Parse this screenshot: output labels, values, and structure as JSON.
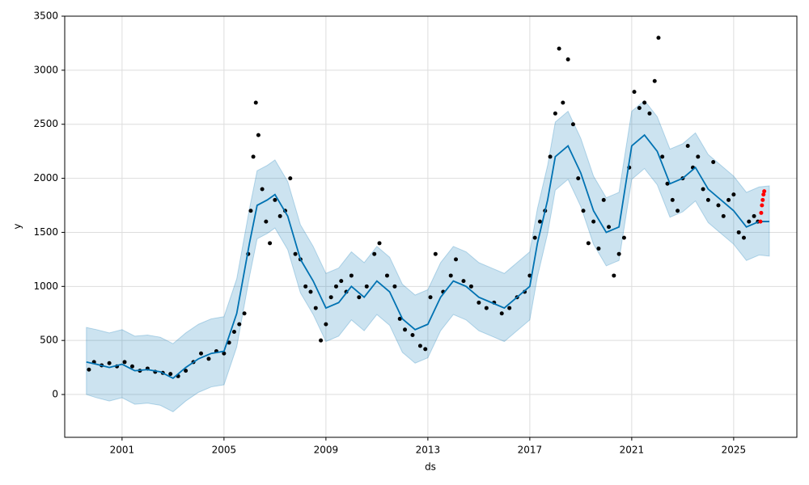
{
  "chart_data": {
    "type": "line",
    "xlabel": "ds",
    "ylabel": "y",
    "xlim": [
      1998.75,
      2027.48
    ],
    "ylim": [
      -396,
      3500
    ],
    "xticks": [
      2001,
      2005,
      2009,
      2013,
      2017,
      2021,
      2025
    ],
    "yticks": [
      0,
      500,
      1000,
      1500,
      2000,
      2500,
      3000,
      3500
    ],
    "grid": true,
    "x": [
      1999.6,
      2000.0,
      2000.5,
      2001.0,
      2001.5,
      2002.0,
      2002.5,
      2003.0,
      2003.5,
      2004.0,
      2004.5,
      2005.0,
      2005.5,
      2006.0,
      2006.3,
      2006.7,
      2007.0,
      2007.5,
      2008.0,
      2008.5,
      2009.0,
      2009.5,
      2010.0,
      2010.5,
      2011.0,
      2011.5,
      2012.0,
      2012.5,
      2013.0,
      2013.5,
      2014.0,
      2014.5,
      2015.0,
      2015.5,
      2016.0,
      2016.5,
      2017.0,
      2017.3,
      2017.7,
      2018.0,
      2018.5,
      2019.0,
      2019.5,
      2020.0,
      2020.5,
      2021.0,
      2021.5,
      2022.0,
      2022.5,
      2023.0,
      2023.5,
      2024.0,
      2024.5,
      2025.0,
      2025.5,
      2026.0,
      2026.4
    ],
    "series": [
      {
        "color": "#0072b2",
        "values": [
          300,
          280,
          250,
          280,
          220,
          230,
          210,
          150,
          250,
          330,
          380,
          400,
          750,
          1400,
          1750,
          1800,
          1850,
          1650,
          1250,
          1050,
          800,
          850,
          1000,
          900,
          1050,
          950,
          700,
          600,
          650,
          900,
          1050,
          1000,
          900,
          850,
          800,
          900,
          1000,
          1400,
          1800,
          2200,
          2300,
          2050,
          1700,
          1500,
          1550,
          2300,
          2400,
          2250,
          1950,
          2000,
          2100,
          1900,
          1800,
          1700,
          1550,
          1600,
          1600
        ]
      },
      {
        "color": "#0072b2",
        "values": [
          0,
          -30,
          -60,
          -30,
          -90,
          -80,
          -100,
          -160,
          -60,
          20,
          70,
          90,
          440,
          1090,
          1440,
          1490,
          1540,
          1340,
          940,
          740,
          490,
          540,
          690,
          590,
          740,
          640,
          390,
          290,
          340,
          590,
          740,
          690,
          590,
          540,
          490,
          590,
          690,
          1090,
          1490,
          1890,
          1990,
          1740,
          1390,
          1190,
          1240,
          1990,
          2090,
          1940,
          1640,
          1690,
          1790,
          1590,
          1490,
          1390,
          1240,
          1290,
          1280
        ]
      },
      {
        "color": "#0072b2",
        "values": [
          620,
          600,
          570,
          600,
          540,
          550,
          530,
          470,
          570,
          650,
          700,
          720,
          1070,
          1720,
          2070,
          2120,
          2170,
          1970,
          1570,
          1370,
          1120,
          1170,
          1320,
          1220,
          1370,
          1270,
          1020,
          920,
          970,
          1220,
          1370,
          1320,
          1220,
          1170,
          1120,
          1220,
          1320,
          1720,
          2120,
          2520,
          2620,
          2370,
          2020,
          1820,
          1870,
          2620,
          2720,
          2570,
          2270,
          2320,
          2420,
          2220,
          2120,
          2020,
          1870,
          1920,
          1930
        ]
      }
    ],
    "points": {
      "color": "#000000",
      "x": [
        1999.7,
        1999.9,
        2000.2,
        2000.5,
        2000.8,
        2001.1,
        2001.4,
        2001.7,
        2002.0,
        2002.3,
        2002.6,
        2002.9,
        2003.2,
        2003.5,
        2003.8,
        2004.1,
        2004.4,
        2004.7,
        2005.0,
        2005.2,
        2005.4,
        2005.6,
        2005.8,
        2005.95,
        2006.05,
        2006.15,
        2006.25,
        2006.35,
        2006.5,
        2006.65,
        2006.8,
        2007.0,
        2007.2,
        2007.4,
        2007.6,
        2007.8,
        2008.0,
        2008.2,
        2008.4,
        2008.6,
        2008.8,
        2009.0,
        2009.2,
        2009.4,
        2009.6,
        2009.8,
        2010.0,
        2010.3,
        2010.6,
        2010.9,
        2011.1,
        2011.4,
        2011.7,
        2011.9,
        2012.1,
        2012.4,
        2012.7,
        2012.9,
        2013.1,
        2013.3,
        2013.6,
        2013.9,
        2014.1,
        2014.4,
        2014.7,
        2015.0,
        2015.3,
        2015.6,
        2015.9,
        2016.2,
        2016.5,
        2016.8,
        2017.0,
        2017.2,
        2017.4,
        2017.6,
        2017.8,
        2018.0,
        2018.15,
        2018.3,
        2018.5,
        2018.7,
        2018.9,
        2019.1,
        2019.3,
        2019.5,
        2019.7,
        2019.9,
        2020.1,
        2020.3,
        2020.5,
        2020.7,
        2020.9,
        2021.1,
        2021.3,
        2021.5,
        2021.7,
        2021.9,
        2022.05,
        2022.2,
        2022.4,
        2022.6,
        2022.8,
        2023.0,
        2023.2,
        2023.4,
        2023.6,
        2023.8,
        2024.0,
        2024.2,
        2024.4,
        2024.6,
        2024.8,
        2025.0,
        2025.2,
        2025.4,
        2025.6,
        2025.8,
        2025.95
      ],
      "values": [
        230,
        300,
        270,
        290,
        260,
        300,
        260,
        220,
        240,
        210,
        200,
        190,
        170,
        220,
        300,
        380,
        330,
        400,
        380,
        480,
        580,
        650,
        750,
        1300,
        1700,
        2200,
        2700,
        2400,
        1900,
        1600,
        1400,
        1800,
        1650,
        1700,
        2000,
        1300,
        1250,
        1000,
        950,
        800,
        500,
        650,
        900,
        1000,
        1050,
        950,
        1100,
        900,
        1000,
        1300,
        1400,
        1100,
        1000,
        700,
        600,
        550,
        450,
        420,
        900,
        1300,
        950,
        1100,
        1250,
        1050,
        1000,
        850,
        800,
        850,
        750,
        800,
        900,
        950,
        1100,
        1450,
        1600,
        1700,
        2200,
        2600,
        3200,
        2700,
        3100,
        2500,
        2000,
        1700,
        1400,
        1600,
        1350,
        1800,
        1550,
        1100,
        1300,
        1450,
        2100,
        2800,
        2650,
        2700,
        2600,
        2900,
        3300,
        2200,
        1950,
        1800,
        1700,
        2000,
        2300,
        2100,
        2200,
        1900,
        1800,
        2150,
        1750,
        1650,
        1800,
        1850,
        1500,
        1450,
        1600,
        1650,
        1600
      ]
    },
    "recent_points": {
      "color": "#ff0000",
      "x": [
        2026.05,
        2026.08,
        2026.11,
        2026.14,
        2026.17,
        2026.2
      ],
      "values": [
        1600,
        1680,
        1750,
        1800,
        1850,
        1880
      ]
    }
  }
}
